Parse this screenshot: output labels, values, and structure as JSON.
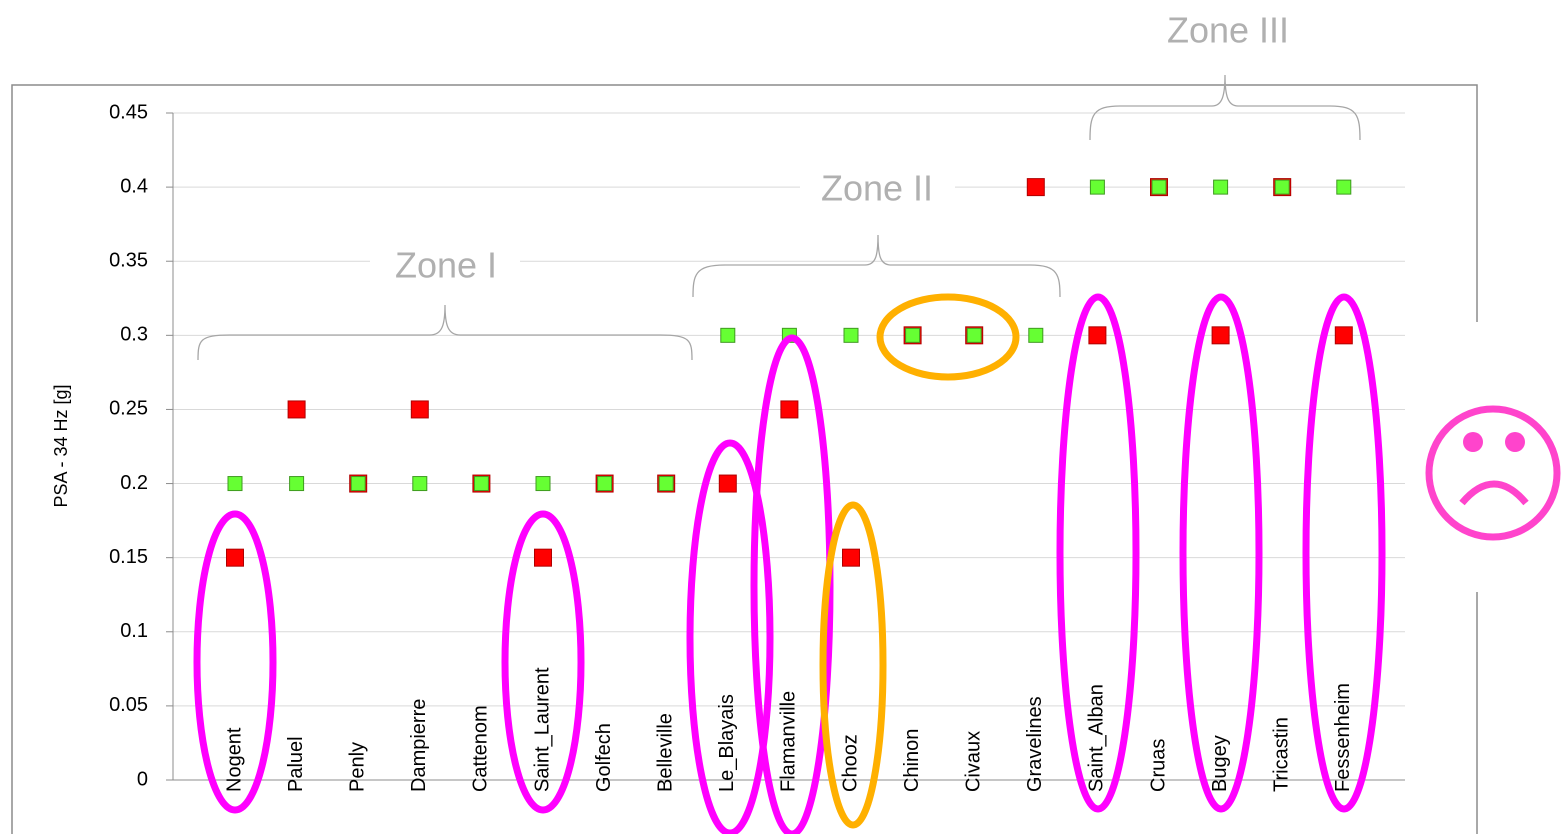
{
  "chart_data": {
    "type": "scatter",
    "y_label": "PSA - 34 Hz [g]",
    "categories": [
      "Nogent",
      "Paluel",
      "Penly",
      "Dampierre",
      "Cattenom",
      "Saint_Laurent",
      "Golfech",
      "Belleville",
      "Le_Blayais",
      "Flamanville",
      "Chooz",
      "Chinon",
      "Civaux",
      "Gravelines",
      "Saint_Alban",
      "Cruas",
      "Bugey",
      "Tricastin",
      "Fessenheim"
    ],
    "series": [
      {
        "color": "#ff0000",
        "values": [
          0.15,
          0.25,
          0.2,
          0.25,
          0.2,
          0.15,
          0.2,
          0.2,
          0.2,
          0.25,
          0.15,
          0.3,
          0.3,
          0.4,
          0.3,
          0.4,
          0.3,
          0.4,
          0.3
        ]
      },
      {
        "color": "#66ff33",
        "values": [
          0.2,
          0.2,
          0.2,
          0.2,
          0.2,
          0.2,
          0.2,
          0.2,
          0.3,
          0.3,
          0.3,
          0.3,
          0.3,
          0.3,
          0.4,
          0.4,
          0.4,
          0.4,
          0.4
        ]
      }
    ],
    "ylim": [
      0,
      0.45
    ],
    "yticks": [
      0,
      0.05,
      0.1,
      0.15,
      0.2,
      0.25,
      0.3,
      0.35,
      0.4,
      0.45
    ],
    "grid": true,
    "annotations": [
      "Zone I",
      "Zone II",
      "Zone III"
    ]
  }
}
